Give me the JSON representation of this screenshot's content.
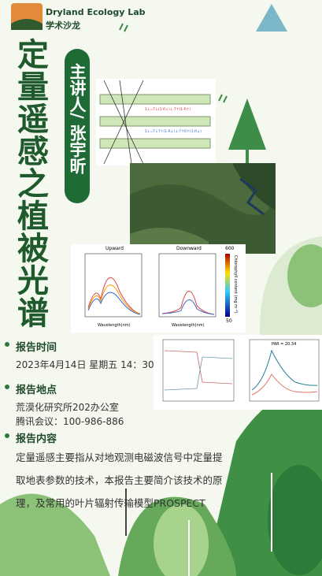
{
  "header": {
    "lab": "Dryland Ecology Lab",
    "subtitle": "学术沙龙"
  },
  "title": "定量遥感之植被光谱",
  "speaker": "主讲人/ 张宇昕",
  "figures": {
    "upward": "Upward",
    "downward": "Downward",
    "xlabel": "Wavelength(nm)",
    "colorbar": "Chlorophyll content (mg m⁻²)",
    "cmax": "600",
    "cmin": "50",
    "par": "PAR = 20.34"
  },
  "sections": [
    {
      "heading": "报告时间",
      "lines": [
        "2023年4月14日  星期五  14：30"
      ]
    },
    {
      "heading": "报告地点",
      "lines": [
        "荒漠化研究所202办公室",
        "腾讯会议：100-986-886"
      ]
    },
    {
      "heading": "报告内容",
      "lines": [
        "定量遥感主要指从对地观测电磁波信号中定量提取地表参数的技术，本报告主要简介该技术的原理，及常用的叶片辐射传输模型PROSPECT"
      ]
    }
  ]
}
